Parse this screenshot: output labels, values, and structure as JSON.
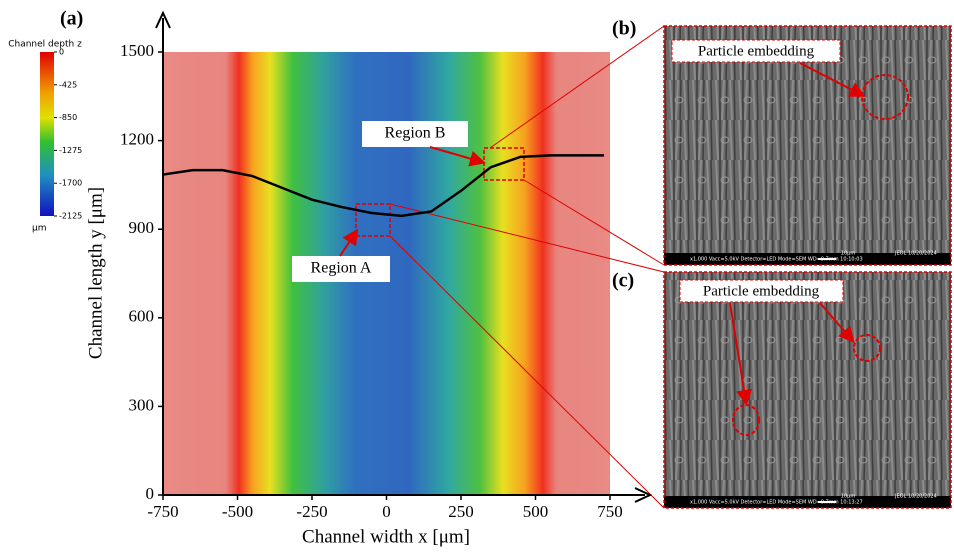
{
  "chart_data": {
    "type": "line",
    "panel_label": "(a)",
    "xlabel": "Channel width x [μm]",
    "ylabel": "Channel length y [μm]",
    "xlim": [
      -750,
      750
    ],
    "xticks": [
      -750,
      -500,
      -250,
      0,
      250,
      500,
      750
    ],
    "ylim": [
      0,
      1500
    ],
    "yticks": [
      0,
      300,
      600,
      900,
      1200,
      1500
    ],
    "x": [
      -750,
      -650,
      -550,
      -450,
      -350,
      -250,
      -150,
      -50,
      50,
      150,
      250,
      350,
      450,
      550,
      730
    ],
    "values": [
      1085,
      1100,
      1100,
      1080,
      1040,
      1000,
      975,
      955,
      945,
      960,
      1030,
      1110,
      1145,
      1150,
      1150
    ],
    "color": "#000000",
    "annotations": [
      "Region A",
      "Region B"
    ],
    "colorbar": {
      "title": "Channel depth z",
      "unit": "μm",
      "lim": [
        -2125,
        0
      ],
      "ticks": [
        0,
        -425,
        -850,
        -1275,
        -1700,
        -2125
      ]
    }
  },
  "panels": [
    {
      "label": "(b)",
      "annotation": "Particle embedding",
      "scale": "10μm",
      "footer": "x1,000   Vacc=5.0kV   Detector=LED   Mode=SEM   WD=9.7mm 10:10:03",
      "brand": "JEOL 10/20/2024"
    },
    {
      "label": "(c)",
      "annotation": "Particle embedding",
      "scale": "10μm",
      "footer": "x1,000   Vacc=5.0kV   Detector=LED   Mode=SEM   WD=9.7mm 10:13:27",
      "brand": "JEOL 10/20/2024"
    }
  ]
}
